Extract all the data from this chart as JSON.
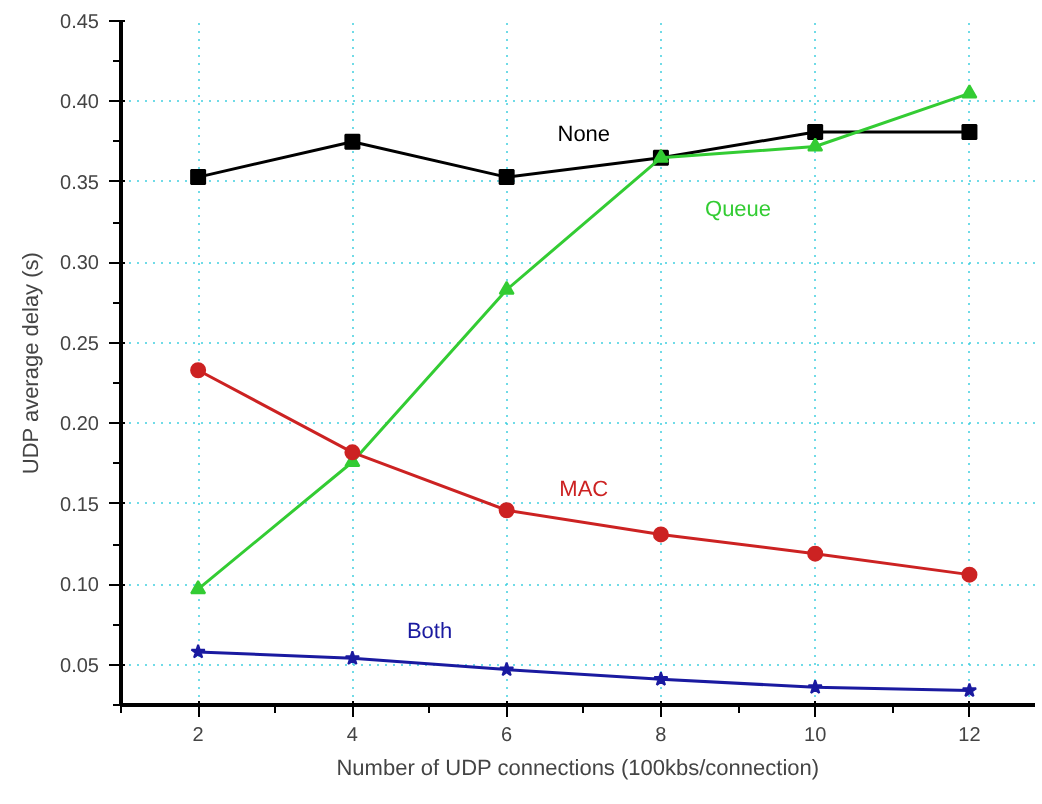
{
  "chart_data": {
    "type": "line",
    "xlabel": "Number of UDP connections (100kbs/connection)",
    "ylabel": "UDP average delay (s)",
    "x": [
      2,
      4,
      6,
      8,
      10,
      12
    ],
    "xlim": [
      1,
      12.85
    ],
    "ylim": [
      0.025,
      0.45
    ],
    "xticks": [
      2,
      4,
      6,
      8,
      10,
      12
    ],
    "yticks": [
      0.05,
      {
        "value": 0.1,
        "label": "0.10"
      },
      0.15,
      {
        "value": 0.2,
        "label": "0.20"
      },
      0.25,
      {
        "value": 0.3,
        "label": "0.30"
      },
      0.35,
      {
        "value": 0.4,
        "label": "0.40"
      },
      0.45
    ],
    "grid": true,
    "series": [
      {
        "name": "None",
        "color": "#000000",
        "marker": "square",
        "values": [
          0.353,
          0.375,
          0.353,
          0.365,
          0.381,
          0.381
        ]
      },
      {
        "name": "Queue",
        "color": "#33cc33",
        "marker": "triangle",
        "values": [
          0.097,
          0.176,
          0.283,
          0.365,
          0.372,
          0.405
        ]
      },
      {
        "name": "MAC",
        "color": "#cc2222",
        "marker": "circle",
        "values": [
          0.233,
          0.182,
          0.146,
          0.131,
          0.119,
          0.106
        ]
      },
      {
        "name": "Both",
        "color": "#1a1aa0",
        "marker": "star",
        "values": [
          0.058,
          0.054,
          0.047,
          0.041,
          0.036,
          0.034
        ]
      }
    ]
  }
}
